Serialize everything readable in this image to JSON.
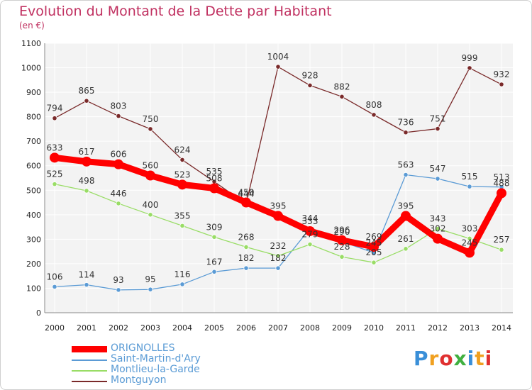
{
  "title": "Evolution du Montant de la Dette par Habitant",
  "subtitle": "(en €)",
  "chart_data": {
    "type": "line",
    "x": [
      "2000",
      "2001",
      "2002",
      "2003",
      "2004",
      "2005",
      "2006",
      "2007",
      "2008",
      "2009",
      "2010",
      "2011",
      "2012",
      "2013",
      "2014"
    ],
    "ylim": [
      0,
      1100
    ],
    "yticks": [
      0,
      100,
      200,
      300,
      400,
      500,
      600,
      700,
      800,
      900,
      1000,
      1100
    ],
    "grid": true,
    "legend_position": "bottom-left",
    "series": [
      {
        "name": "ORIGNOLLES",
        "color": "#ff0000",
        "values": [
          633,
          617,
          606,
          560,
          523,
          508,
          450,
          395,
          333,
          296,
          269,
          395,
          302,
          245,
          488
        ],
        "labels": [
          "633",
          "617",
          "606",
          "560",
          "523",
          "508",
          "450",
          "395",
          "333",
          "296",
          "269",
          "395",
          "302",
          "245",
          "488"
        ]
      },
      {
        "name": "Saint-Martin-d'Ary",
        "color": "#5b9bd5",
        "values": [
          106,
          114,
          93,
          95,
          116,
          167,
          182,
          182,
          344,
          290,
          245,
          563,
          547,
          515,
          513
        ],
        "labels": [
          "106",
          "114",
          "93",
          "95",
          "116",
          "167",
          "182",
          "182",
          "344",
          "290",
          "245",
          "563",
          "547",
          "515",
          "513"
        ]
      },
      {
        "name": "Montlieu-la-Garde",
        "color": "#99dd66",
        "values": [
          525,
          498,
          446,
          400,
          355,
          309,
          268,
          232,
          279,
          228,
          205,
          261,
          343,
          303,
          257
        ],
        "labels": [
          "525",
          "498",
          "446",
          "400",
          "355",
          "309",
          "268",
          "232",
          "279",
          "228",
          "205",
          "261",
          "343",
          "303",
          "257"
        ]
      },
      {
        "name": "Montguyon",
        "color": "#7a2a2a",
        "values": [
          794,
          865,
          803,
          750,
          624,
          535,
          444,
          1004,
          928,
          882,
          808,
          736,
          751,
          999,
          932
        ],
        "labels": [
          "794",
          "865",
          "803",
          "750",
          "624",
          "535",
          "444",
          "1004",
          "928",
          "882",
          "808",
          "736",
          "751",
          "999",
          "932"
        ]
      }
    ]
  },
  "logo": {
    "letters": [
      "P",
      "r",
      "o",
      "x",
      "i",
      "t",
      "i"
    ],
    "colors": [
      "#3a8fd8",
      "#f0a020",
      "#e03030",
      "#40b040",
      "#3a8fd8",
      "#f0a020",
      "#e03030"
    ]
  }
}
